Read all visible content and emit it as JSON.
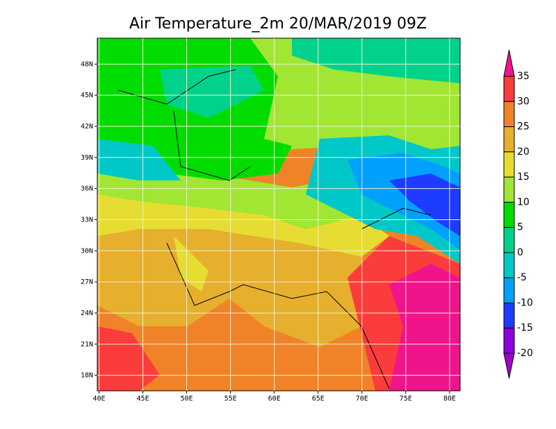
{
  "title": "Air Temperature_2m 20/MAR/2019 09Z",
  "map": {
    "xlim": [
      39.8,
      81.2
    ],
    "ylim": [
      16.5,
      50.5
    ],
    "xticks": [
      {
        "value": 40,
        "label": "40E"
      },
      {
        "value": 45,
        "label": "45E"
      },
      {
        "value": 50,
        "label": "50E"
      },
      {
        "value": 55,
        "label": "55E"
      },
      {
        "value": 60,
        "label": "60E"
      },
      {
        "value": 65,
        "label": "65E"
      },
      {
        "value": 70,
        "label": "70E"
      },
      {
        "value": 75,
        "label": "75E"
      },
      {
        "value": 80,
        "label": "80E"
      }
    ],
    "yticks": [
      {
        "value": 48,
        "label": "48N"
      },
      {
        "value": 45,
        "label": "45N"
      },
      {
        "value": 42,
        "label": "42N"
      },
      {
        "value": 39,
        "label": "39N"
      },
      {
        "value": 36,
        "label": "36N"
      },
      {
        "value": 33,
        "label": "33N"
      },
      {
        "value": 30,
        "label": "30N"
      },
      {
        "value": 27,
        "label": "27N"
      },
      {
        "value": 24,
        "label": "24N"
      },
      {
        "value": 21,
        "label": "21N"
      },
      {
        "value": 18,
        "label": "18N"
      }
    ],
    "grid": true
  },
  "colorbar": {
    "levels": [
      35,
      30,
      25,
      20,
      15,
      10,
      5,
      0,
      -5,
      -10,
      -15,
      -20
    ],
    "colors": [
      "#f0148c",
      "#fa3c3c",
      "#f08228",
      "#e6af2d",
      "#e6dc32",
      "#a0e632",
      "#00dc00",
      "#00d28c",
      "#00c8c8",
      "#00a0ff",
      "#1e3cff",
      "#8c00dc",
      "#a000c8"
    ]
  }
}
